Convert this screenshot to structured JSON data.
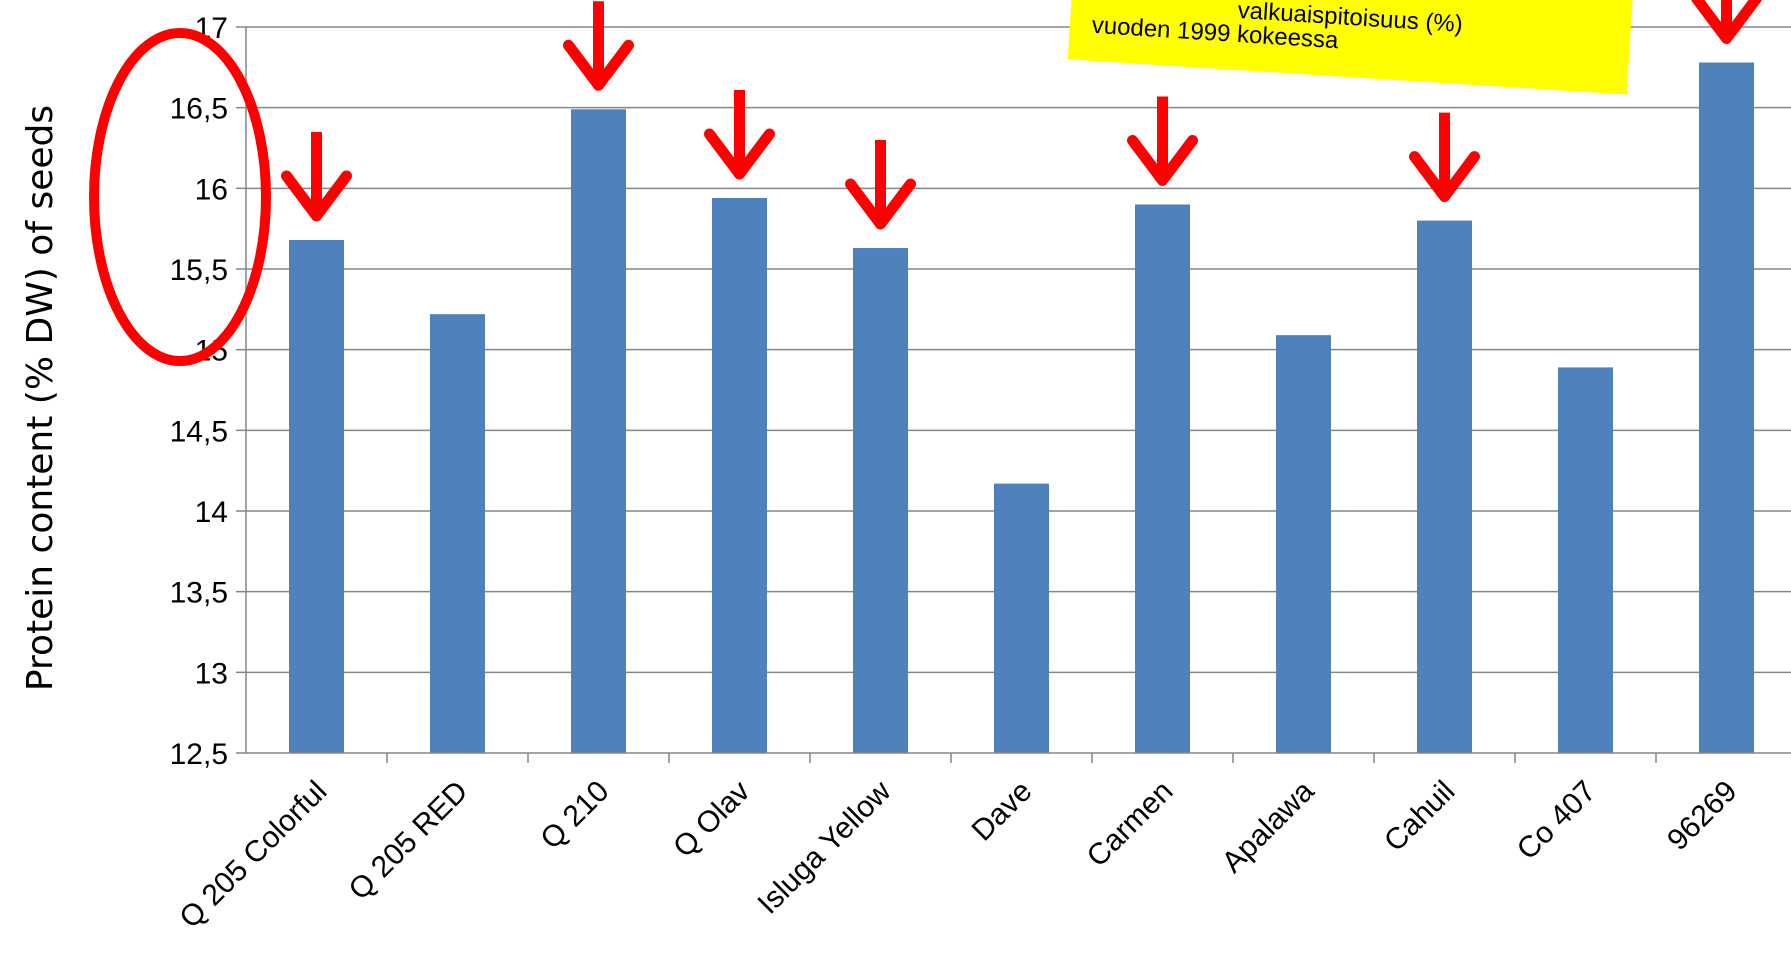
{
  "chart_data": {
    "type": "bar",
    "categories": [
      "Q 205 Colorful",
      "Q 205 RED",
      "Q 210",
      "Q Olav",
      "Isluga Yellow",
      "Dave",
      "Carmen",
      "Apalawa",
      "Cahuil",
      "Co 407",
      "96269"
    ],
    "values": [
      15.68,
      15.22,
      16.49,
      15.94,
      15.63,
      14.17,
      15.9,
      15.09,
      15.8,
      14.89,
      16.78
    ],
    "ylabel": "Protein content (% DW) of seeds",
    "ylim": [
      12.5,
      17
    ],
    "yticks": [
      "12,5",
      "13",
      "13,5",
      "14",
      "14,5",
      "15",
      "15,5",
      "16",
      "16,5",
      "17"
    ],
    "grid": true,
    "bar_color": "#4f81bd",
    "highlighted_categories": [
      "Q 205 Colorful",
      "Q 210",
      "Q Olav",
      "Isluga Yellow",
      "Carmen",
      "Cahuil",
      "96269"
    ],
    "annotation_color": "#ff0000",
    "note": {
      "line1": "valkuaispitoisuus (%)",
      "line2": "vuoden 1999 kokeessa",
      "background": "#ffff00"
    }
  }
}
